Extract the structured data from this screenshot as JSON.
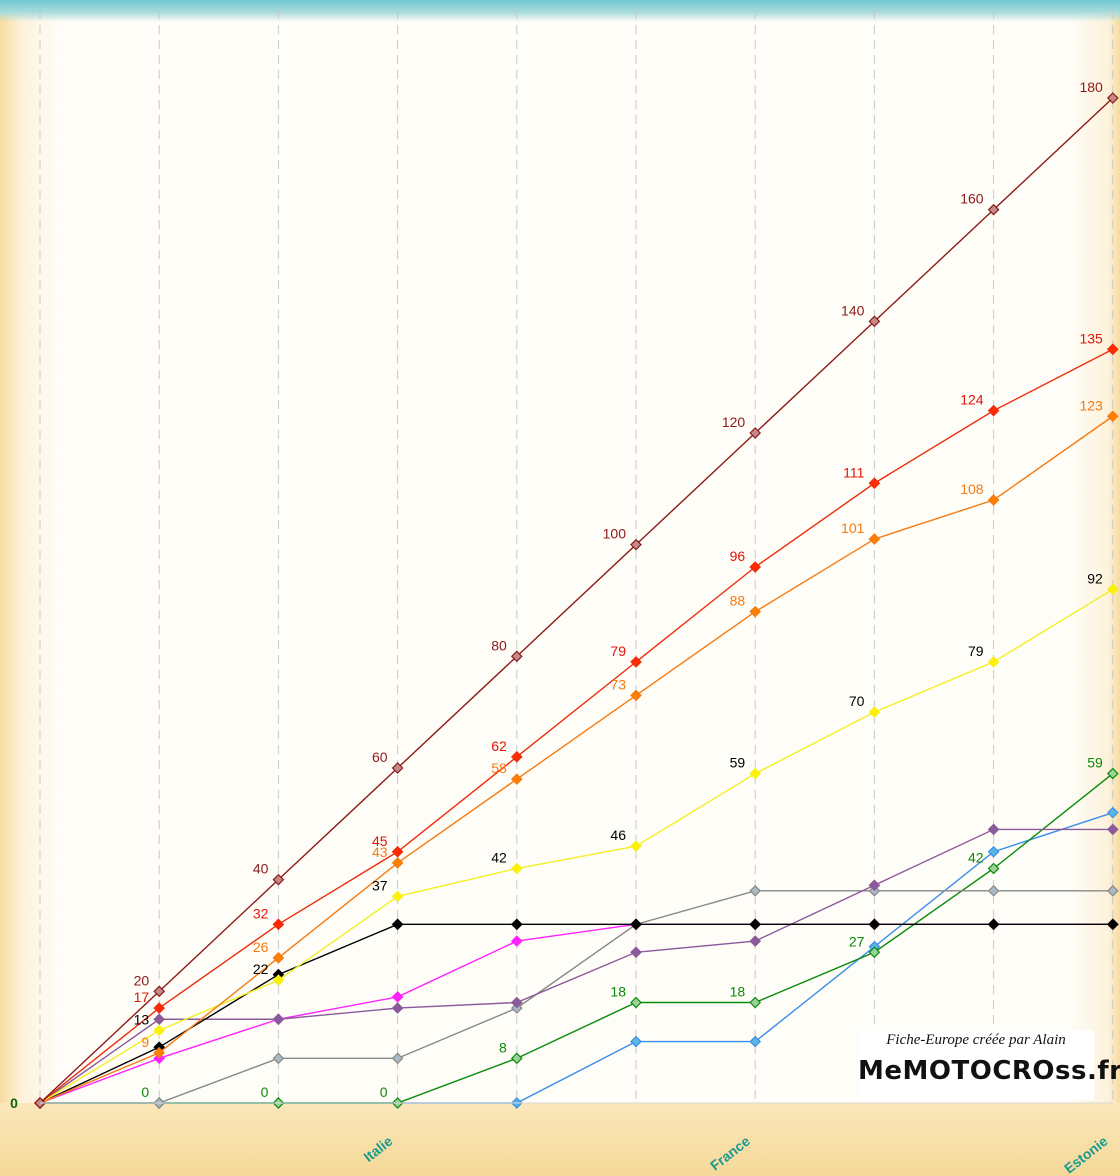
{
  "chart_data": {
    "type": "line",
    "title": "",
    "xlabel": "",
    "ylabel": "",
    "grid": "vertical dashed",
    "ylim": [
      0,
      180
    ],
    "x": [
      0,
      1,
      2,
      3,
      4,
      5,
      6,
      7,
      8,
      9
    ],
    "x_tick_labels": [
      {
        "x": 3,
        "label": "Italie"
      },
      {
        "x": 6,
        "label": "France"
      },
      {
        "x": 9,
        "label": "Estonie"
      }
    ],
    "series": [
      {
        "color": "#8b1a1a",
        "marker_fill": "#c48a8a",
        "values": [
          0,
          20,
          40,
          60,
          80,
          100,
          120,
          140,
          160,
          180
        ],
        "labels": [
          "",
          "20",
          "40",
          "60",
          "80",
          "100",
          "120",
          "140",
          "160",
          "180"
        ],
        "label_color": "#8b1a1a"
      },
      {
        "color": "#ee2d0f",
        "marker_fill": "#ff2a00",
        "values": [
          0,
          17,
          32,
          45,
          62,
          79,
          96,
          111,
          124,
          135
        ],
        "labels": [
          "",
          "17",
          "32",
          "45",
          "62",
          "79",
          "96",
          "111",
          "124",
          "135"
        ],
        "label_color": "#e0140a"
      },
      {
        "color": "#f57a12",
        "marker_fill": "#ff7f00",
        "values": [
          0,
          9,
          26,
          43,
          58,
          73,
          88,
          101,
          108,
          123
        ],
        "labels": [
          "",
          "9",
          "26",
          "43",
          "58",
          "73",
          "88",
          "101",
          "108",
          "123"
        ],
        "label_color": "#f57a12"
      },
      {
        "color": "#f2f020",
        "marker_fill": "#fff000",
        "values": [
          0,
          13,
          22,
          37,
          42,
          46,
          59,
          70,
          79,
          92
        ],
        "labels": [
          "",
          "13",
          "22",
          "37",
          "42",
          "46",
          "59",
          "70",
          "79",
          "92"
        ],
        "label_color": "#000000"
      },
      {
        "color": "#000000",
        "marker_fill": "#000000",
        "values": [
          0,
          10,
          23,
          32,
          32,
          32,
          32,
          32,
          32,
          32
        ],
        "labels": []
      },
      {
        "color": "#8a5a9a",
        "marker_fill": "#8a5a9a",
        "values": [
          0,
          15,
          15,
          17,
          18,
          27,
          29,
          39,
          49,
          49
        ],
        "labels": []
      },
      {
        "color": "#ff22ff",
        "marker_fill": "#ff22ff",
        "values": [
          0,
          8,
          15,
          19,
          29,
          32,
          32,
          32,
          32,
          32
        ],
        "labels": []
      },
      {
        "color": "#888888",
        "marker_fill": "#a9b9c6",
        "values": [
          0,
          0,
          8,
          8,
          17,
          32,
          38,
          38,
          38,
          38
        ],
        "labels": []
      },
      {
        "color": "#0a8a0a",
        "marker_fill": "#9ad29a",
        "values": [
          0,
          0,
          0,
          0,
          8,
          18,
          18,
          27,
          42,
          59
        ],
        "labels": [
          "",
          "0",
          "0",
          "0",
          "8",
          "18",
          "18",
          "27",
          "42",
          "59"
        ],
        "label_color": "#0a8a0a"
      },
      {
        "color": "#3a8ee8",
        "marker_fill": "#5ab4e6",
        "values": [
          0,
          0,
          0,
          0,
          0,
          11,
          11,
          28,
          45,
          52
        ],
        "labels": []
      }
    ],
    "origin_label": "0"
  },
  "credit": {
    "line": "Fiche-Europe créée par Alain",
    "brand": "MeMOTOCROss.fr"
  }
}
